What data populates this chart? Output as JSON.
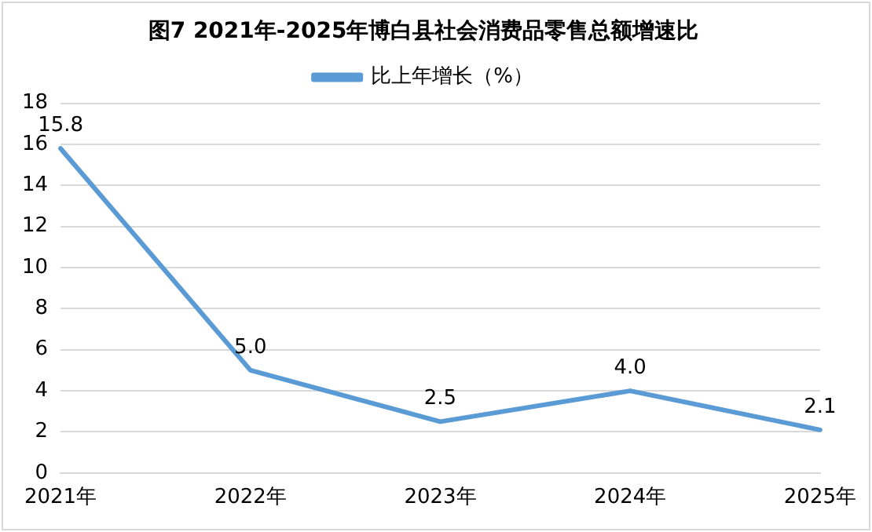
{
  "chart_data": {
    "type": "line",
    "title": "图7 2021年-2025年博白县社会消费品零售总额增速比",
    "categories": [
      "2021年",
      "2022年",
      "2023年",
      "2024年",
      "2025年"
    ],
    "series": [
      {
        "name": "比上年增长（%）",
        "color": "#5b9bd5",
        "values": [
          15.8,
          5.0,
          2.5,
          4.0,
          2.1
        ]
      }
    ],
    "value_labels": [
      "15.8",
      "5.0",
      "2.5",
      "4.0",
      "2.1"
    ],
    "ylim": [
      0,
      18
    ],
    "yticks": [
      0,
      2,
      4,
      6,
      8,
      10,
      12,
      14,
      16,
      18
    ],
    "grid": "y",
    "legend": "top",
    "marker": "none",
    "line_style": "solid"
  }
}
